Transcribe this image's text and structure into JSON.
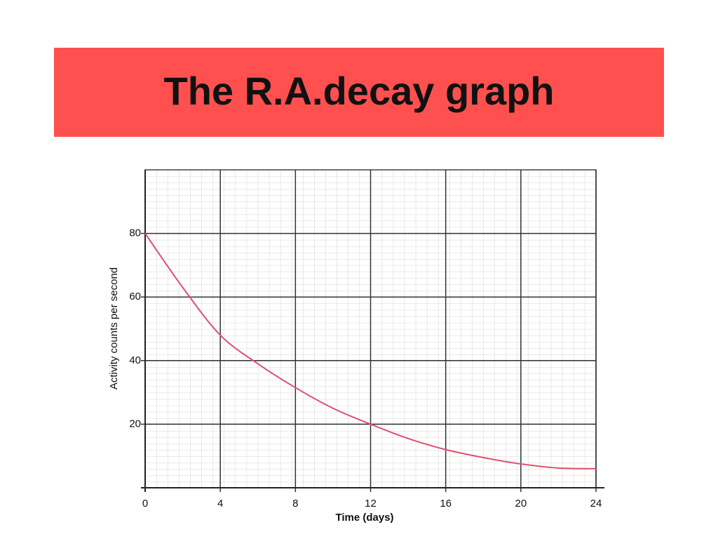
{
  "slide_title": "The R.A.decay graph",
  "chart_data": {
    "type": "line",
    "x_label": "Time (days)",
    "y_label": "Activity counts per second",
    "x": [
      0,
      2,
      4,
      6,
      8,
      10,
      12,
      14,
      16,
      18,
      20,
      22,
      24
    ],
    "series": [
      {
        "color": "#e0506e",
        "values": [
          80,
          63,
          48,
          39,
          31.5,
          25,
          20,
          15.5,
          12,
          9.5,
          7.5,
          6.2,
          6
        ]
      }
    ],
    "xlim": [
      0,
      24
    ],
    "ylim": [
      0,
      100
    ],
    "xticks": [
      0,
      4,
      8,
      12,
      16,
      20,
      24
    ],
    "yticks": [
      20,
      40,
      60,
      80
    ],
    "grid": true
  }
}
